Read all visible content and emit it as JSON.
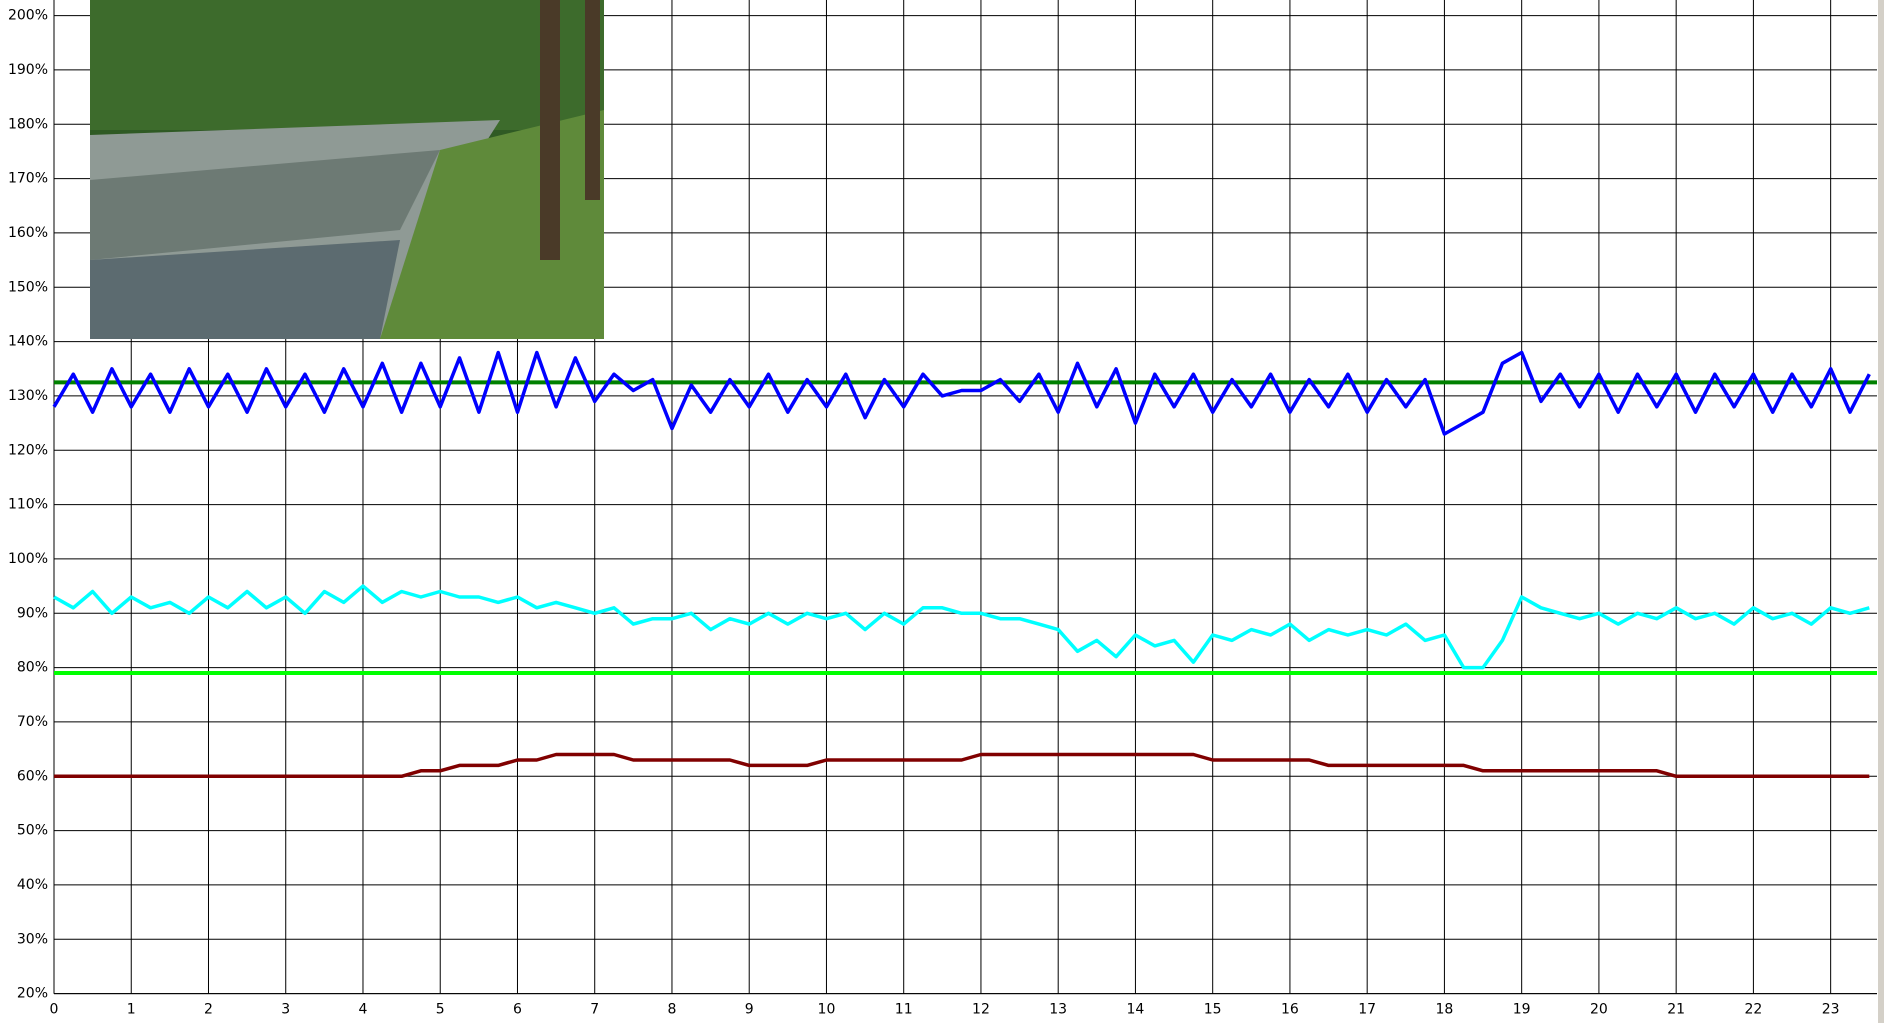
{
  "chart_data": {
    "type": "line",
    "x": [
      0,
      0.25,
      0.5,
      0.75,
      1,
      1.25,
      1.5,
      1.75,
      2,
      2.25,
      2.5,
      2.75,
      3,
      3.25,
      3.5,
      3.75,
      4,
      4.25,
      4.5,
      4.75,
      5,
      5.25,
      5.5,
      5.75,
      6,
      6.25,
      6.5,
      6.75,
      7,
      7.25,
      7.5,
      7.75,
      8,
      8.25,
      8.5,
      8.75,
      9,
      9.25,
      9.5,
      9.75,
      10,
      10.25,
      10.5,
      10.75,
      11,
      11.25,
      11.5,
      11.75,
      12,
      12.25,
      12.5,
      12.75,
      13,
      13.25,
      13.5,
      13.75,
      14,
      14.25,
      14.5,
      14.75,
      15,
      15.25,
      15.5,
      15.75,
      16,
      16.25,
      16.5,
      16.75,
      17,
      17.25,
      17.5,
      17.75,
      18,
      18.25,
      18.5,
      18.75,
      19,
      19.25,
      19.5,
      19.75,
      20,
      20.25,
      20.5,
      20.75,
      21,
      21.25,
      21.5,
      21.75,
      22,
      22.25,
      22.5,
      22.75,
      23,
      23.25,
      23.5
    ],
    "series": [
      {
        "color": "#0000ff",
        "values": [
          128,
          134,
          127,
          135,
          128,
          134,
          127,
          135,
          128,
          134,
          127,
          135,
          128,
          134,
          127,
          135,
          128,
          136,
          127,
          136,
          128,
          137,
          127,
          138,
          127,
          138,
          128,
          137,
          129,
          134,
          131,
          133,
          124,
          132,
          127,
          133,
          128,
          134,
          127,
          133,
          128,
          134,
          126,
          133,
          128,
          134,
          130,
          131,
          131,
          133,
          129,
          134,
          127,
          136,
          128,
          135,
          125,
          134,
          128,
          134,
          127,
          133,
          128,
          134,
          127,
          133,
          128,
          134,
          127,
          133,
          128,
          133,
          123,
          125,
          127,
          136,
          138,
          129,
          134,
          128,
          134,
          127,
          134,
          128,
          134,
          127,
          134,
          128,
          134,
          127,
          134,
          128,
          135,
          127,
          134
        ]
      },
      {
        "color": "#00ffff",
        "values": [
          93,
          91,
          94,
          90,
          93,
          91,
          92,
          90,
          93,
          91,
          94,
          91,
          93,
          90,
          94,
          92,
          95,
          92,
          94,
          93,
          94,
          93,
          93,
          92,
          93,
          91,
          92,
          91,
          90,
          91,
          88,
          89,
          89,
          90,
          87,
          89,
          88,
          90,
          88,
          90,
          89,
          90,
          87,
          90,
          88,
          91,
          91,
          90,
          90,
          89,
          89,
          88,
          87,
          83,
          85,
          82,
          86,
          84,
          85,
          81,
          86,
          85,
          87,
          86,
          88,
          85,
          87,
          86,
          87,
          86,
          88,
          85,
          86,
          80,
          80,
          85,
          93,
          91,
          90,
          89,
          90,
          88,
          90,
          89,
          91,
          89,
          90,
          88,
          91,
          89,
          90,
          88,
          91,
          90,
          91
        ]
      },
      {
        "color": "#800000",
        "values": [
          60,
          60,
          60,
          60,
          60,
          60,
          60,
          60,
          60,
          60,
          60,
          60,
          60,
          60,
          60,
          60,
          60,
          60,
          60,
          61,
          61,
          62,
          62,
          62,
          63,
          63,
          64,
          64,
          64,
          64,
          63,
          63,
          63,
          63,
          63,
          63,
          62,
          62,
          62,
          62,
          63,
          63,
          63,
          63,
          63,
          63,
          63,
          63,
          64,
          64,
          64,
          64,
          64,
          64,
          64,
          64,
          64,
          64,
          64,
          64,
          63,
          63,
          63,
          63,
          63,
          63,
          62,
          62,
          62,
          62,
          62,
          62,
          62,
          62,
          61,
          61,
          61,
          61,
          61,
          61,
          61,
          61,
          61,
          61,
          60,
          60,
          60,
          60,
          60,
          60,
          60,
          60,
          60,
          60,
          60
        ]
      }
    ],
    "hlines": [
      {
        "value": 132.5,
        "color": "#008000"
      },
      {
        "value": 79,
        "color": "#00ff00"
      }
    ],
    "xlim": [
      0,
      23.6
    ],
    "ylim": [
      20,
      200
    ],
    "xticks": [
      0,
      1,
      2,
      3,
      4,
      5,
      6,
      7,
      8,
      9,
      10,
      11,
      12,
      13,
      14,
      15,
      16,
      17,
      18,
      19,
      20,
      21,
      22,
      23
    ],
    "yticks": [
      {
        "value": 20,
        "label": "20%"
      },
      {
        "value": 30,
        "label": "30%"
      },
      {
        "value": 40,
        "label": "40%"
      },
      {
        "value": 50,
        "label": "50%"
      },
      {
        "value": 60,
        "label": "60%"
      },
      {
        "value": 70,
        "label": "70%"
      },
      {
        "value": 80,
        "label": "80%"
      },
      {
        "value": 90,
        "label": "90%"
      },
      {
        "value": 100,
        "label": "100%"
      },
      {
        "value": 110,
        "label": "110%"
      },
      {
        "value": 120,
        "label": "120%"
      },
      {
        "value": 130,
        "label": "130%"
      },
      {
        "value": 140,
        "label": "140%"
      },
      {
        "value": 150,
        "label": "150%"
      },
      {
        "value": 160,
        "label": "160%"
      },
      {
        "value": 170,
        "label": "170%"
      },
      {
        "value": 180,
        "label": "180%"
      },
      {
        "value": 190,
        "label": "190%"
      },
      {
        "value": 200,
        "label": "200%"
      }
    ],
    "grid": true
  }
}
